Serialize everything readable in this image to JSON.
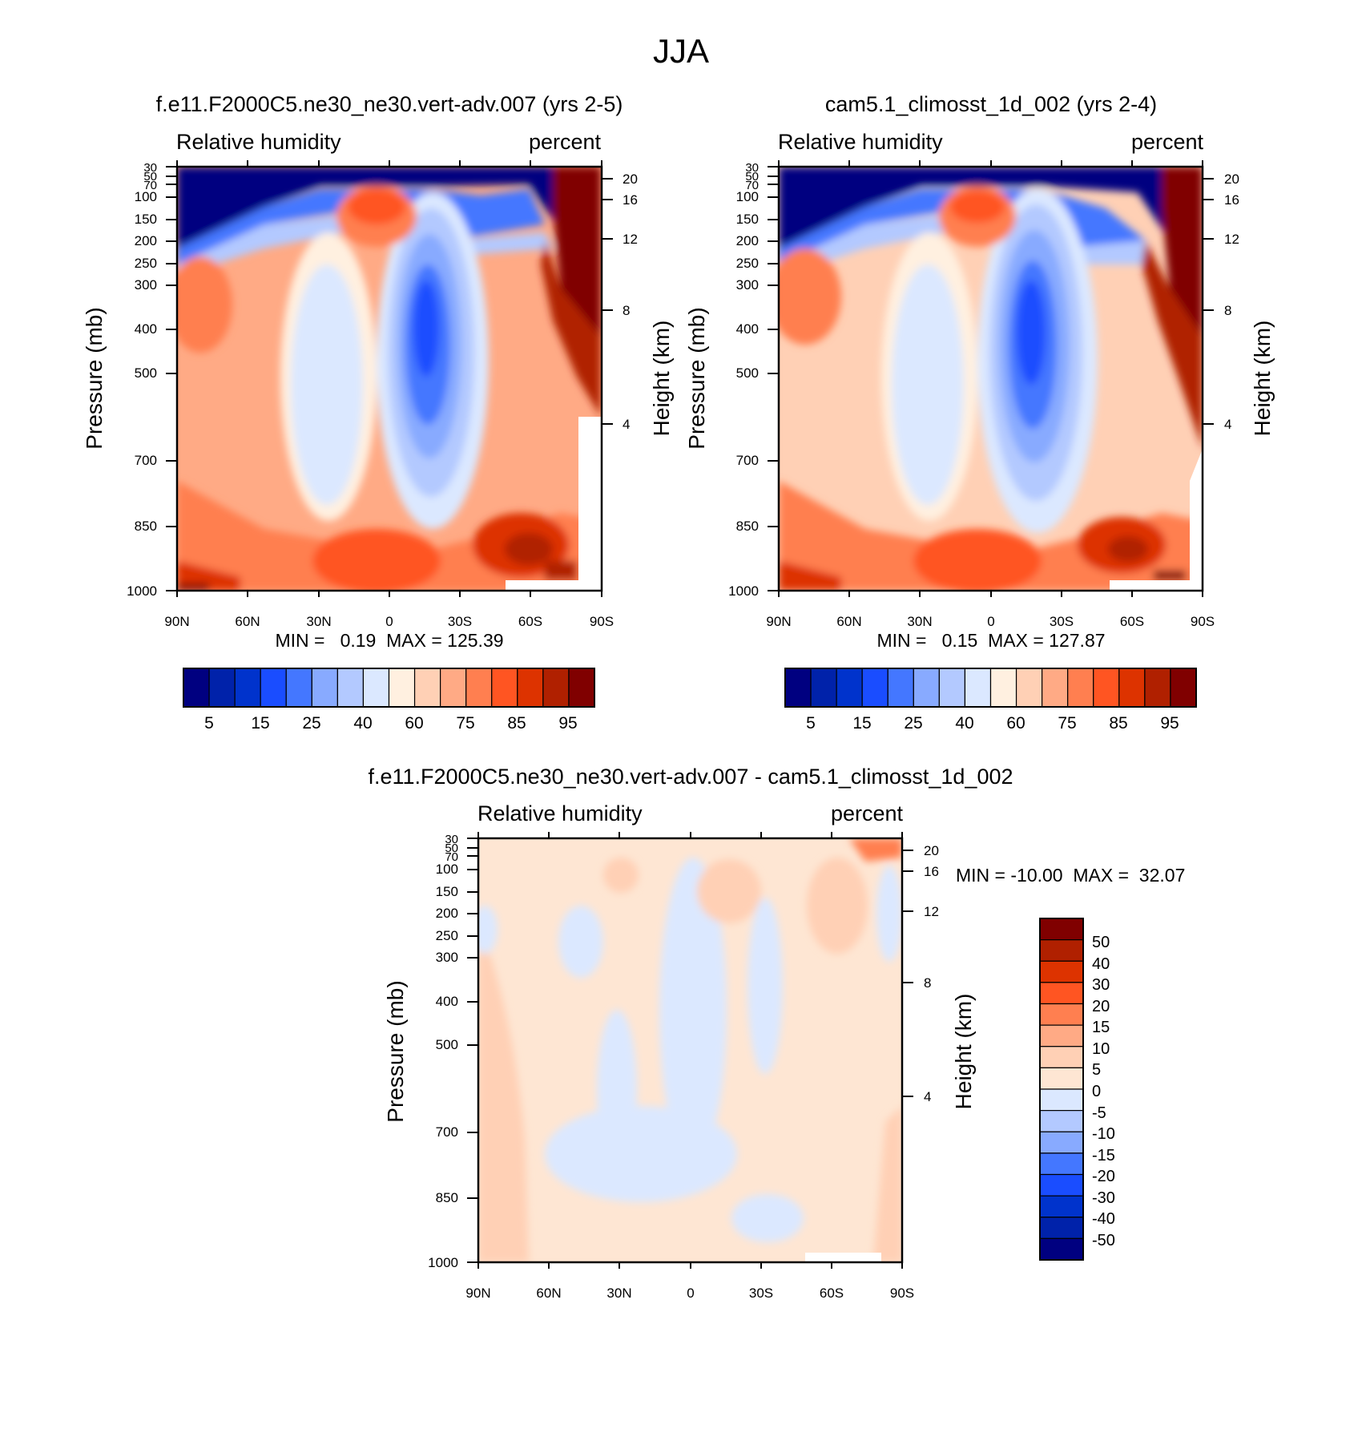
{
  "figure_title": "JJA",
  "colors": {
    "rh_levels": [
      "#000080",
      "#0022aa",
      "#0033cc",
      "#1a4dff",
      "#4477ff",
      "#88aaff",
      "#b3c9ff",
      "#dbe8ff",
      "#fff0e0",
      "#ffd0b5",
      "#ffaa85",
      "#ff7f50",
      "#ff5522",
      "#dd3300",
      "#b02000",
      "#800000"
    ],
    "diff_levels": [
      "#800000",
      "#b02000",
      "#dd3300",
      "#ff5522",
      "#ff7f50",
      "#ffaa85",
      "#ffd0b5",
      "#fee6d3",
      "#dbe8ff",
      "#b3c9ff",
      "#88aaff",
      "#4477ff",
      "#1a4dff",
      "#0033cc",
      "#0022aa",
      "#000080"
    ]
  },
  "chart_data": [
    {
      "type": "heatmap",
      "title": "f.e11.F2000C5.ne30_ne30.vert-adv.007 (yrs 2-5)",
      "left_label": "Relative humidity",
      "right_label": "percent",
      "xlabel": "",
      "ylabel": "Pressure (mb)",
      "ylabel_right": "Height (km)",
      "x_ticks": [
        "90N",
        "60N",
        "30N",
        "0",
        "30S",
        "60S",
        "90S"
      ],
      "y_ticks": [
        "30",
        "50",
        "70",
        "100",
        "150",
        "200",
        "250",
        "300",
        "400",
        "500",
        "700",
        "850",
        "1000"
      ],
      "y_right_ticks": [
        "20",
        "16",
        "12",
        "8",
        "4"
      ],
      "stats": "MIN =   0.19  MAX = 125.39",
      "colorbar_labels": [
        "5",
        "15",
        "25",
        "40",
        "60",
        "75",
        "85",
        "95"
      ]
    },
    {
      "type": "heatmap",
      "title": "cam5.1_climosst_1d_002 (yrs 2-4)",
      "left_label": "Relative humidity",
      "right_label": "percent",
      "xlabel": "",
      "ylabel": "Pressure (mb)",
      "ylabel_right": "Height (km)",
      "x_ticks": [
        "90N",
        "60N",
        "30N",
        "0",
        "30S",
        "60S",
        "90S"
      ],
      "y_ticks": [
        "30",
        "50",
        "70",
        "100",
        "150",
        "200",
        "250",
        "300",
        "400",
        "500",
        "700",
        "850",
        "1000"
      ],
      "y_right_ticks": [
        "20",
        "16",
        "12",
        "8",
        "4"
      ],
      "stats": "MIN =   0.15  MAX = 127.87",
      "colorbar_labels": [
        "5",
        "15",
        "25",
        "40",
        "60",
        "75",
        "85",
        "95"
      ]
    },
    {
      "type": "heatmap",
      "title": "f.e11.F2000C5.ne30_ne30.vert-adv.007 - cam5.1_climosst_1d_002",
      "left_label": "Relative humidity",
      "right_label": "percent",
      "xlabel": "",
      "ylabel": "Pressure (mb)",
      "ylabel_right": "Height (km)",
      "x_ticks": [
        "90N",
        "60N",
        "30N",
        "0",
        "30S",
        "60S",
        "90S"
      ],
      "y_ticks": [
        "30",
        "50",
        "70",
        "100",
        "150",
        "200",
        "250",
        "300",
        "400",
        "500",
        "700",
        "850",
        "1000"
      ],
      "y_right_ticks": [
        "20",
        "16",
        "12",
        "8",
        "4"
      ],
      "stats": "MIN = -10.00  MAX =  32.07",
      "colorbar_labels": [
        "50",
        "40",
        "30",
        "20",
        "15",
        "10",
        "5",
        "0",
        "-5",
        "-10",
        "-15",
        "-20",
        "-30",
        "-40",
        "-50"
      ]
    }
  ]
}
